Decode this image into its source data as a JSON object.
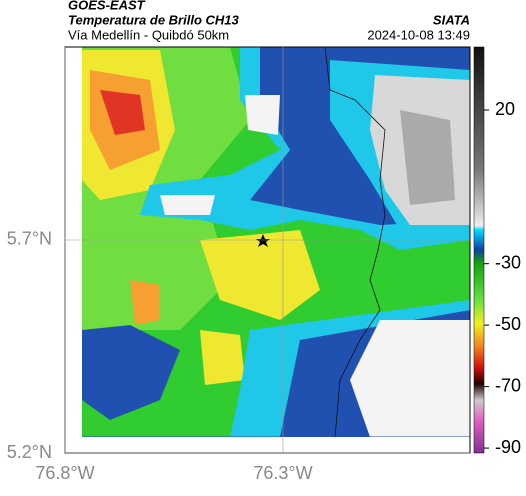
{
  "header": {
    "source": "GOES-EAST",
    "title": "Temperatura de Brillo CH13",
    "subtitle": "Vía Medellín - Quibdó 50km",
    "org": "SIATA",
    "datetime": "2024-10-08 13:49"
  },
  "map": {
    "xlim": [
      -76.8,
      -75.871
    ],
    "ylim": [
      5.2,
      6.153
    ],
    "xticks": [
      {
        "value": -76.8,
        "label": "76.8°W"
      },
      {
        "value": -76.3,
        "label": "76.3°W"
      }
    ],
    "yticks": [
      {
        "value": 5.7,
        "label": "5.7°N"
      },
      {
        "value": 5.2,
        "label": "5.2°N"
      }
    ]
  },
  "colorbar": {
    "lim": [
      -91.6,
      40.5
    ],
    "ticks": [
      20,
      -30,
      -50,
      -70,
      -90
    ]
  }
}
